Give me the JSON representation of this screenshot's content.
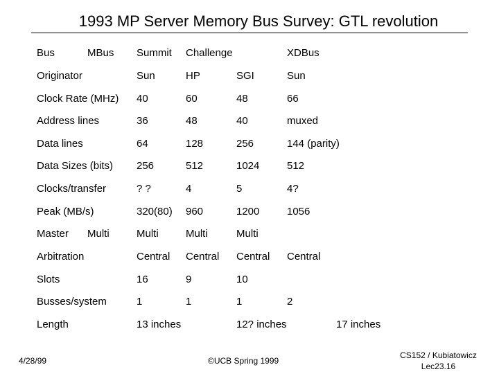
{
  "title": "1993 MP Server Memory Bus Survey: GTL revolution",
  "header": {
    "bus": "Bus",
    "mbus": "MBus",
    "summit": "Summit",
    "challenge": "Challenge",
    "xdbus": "XDBus"
  },
  "rows": [
    {
      "label": "Originator",
      "v1": "Sun",
      "v2": "HP",
      "v3": "SGI",
      "v4": "Sun"
    },
    {
      "label": "Clock Rate (MHz)",
      "v1": "40",
      "v2": "60",
      "v3": "48",
      "v4": "66"
    },
    {
      "label": "Address lines",
      "v1": "36",
      "v2": "48",
      "v3": "40",
      "v4": "muxed"
    },
    {
      "label": "Data lines",
      "v1": "64",
      "v2": "128",
      "v3": "256",
      "v4": "144 (parity)"
    },
    {
      "label": "Data Sizes (bits)",
      "v1": "256",
      "v2": "512",
      "v3": "1024",
      "v4": "512"
    },
    {
      "label": "Clocks/transfer",
      "v1": "? ?",
      "v2": "4",
      "v3": "5",
      "v4": "4?"
    },
    {
      "label": "Peak (MB/s)",
      "v1": "320(80)",
      "v2": "960",
      "v3": "1200",
      "v4": "1056"
    },
    {
      "label": "Master",
      "label2": "Multi",
      "v1": "Multi",
      "v2": "Multi",
      "v3": "Multi",
      "v4": ""
    },
    {
      "label": "Arbitration",
      "v1": "Central",
      "v2": "Central",
      "v3": "Central",
      "v4": "Central"
    },
    {
      "label": "Slots",
      "v1": "16",
      "v2": "9",
      "v3": "10",
      "v4": ""
    },
    {
      "label": "Busses/system",
      "v1": "1",
      "v2": "1",
      "v3": "1",
      "v4": "2"
    },
    {
      "label": "Length",
      "v1": "13 inches",
      "v2": "",
      "v3": "12? inches",
      "v4": "",
      "v5": "17 inches"
    }
  ],
  "footer": {
    "date": "4/28/99",
    "copyright": "©UCB Spring 1999",
    "course_line1": "CS152 / Kubiatowicz",
    "course_line2": "Lec23.16"
  }
}
